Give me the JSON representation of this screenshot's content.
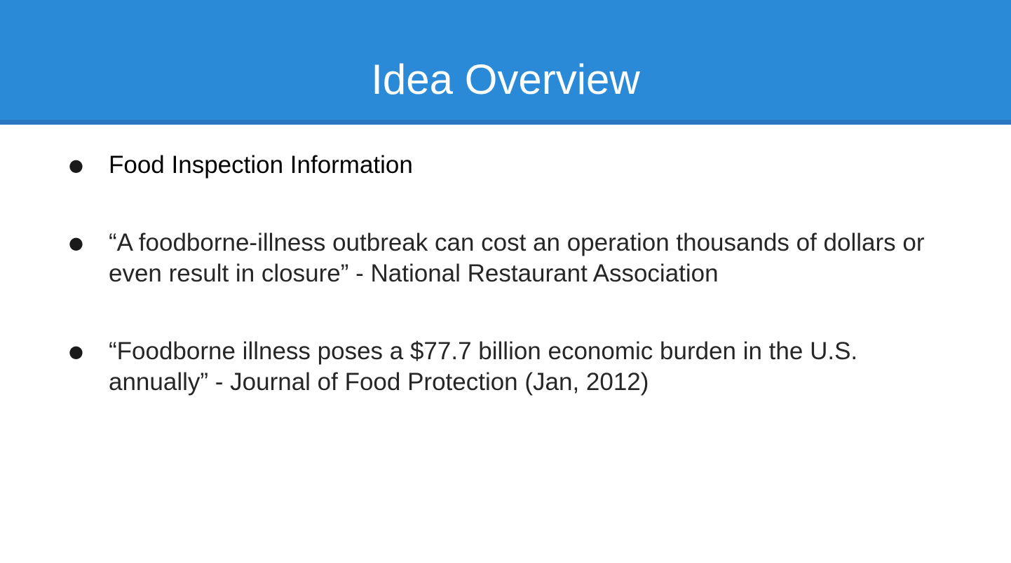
{
  "slide": {
    "title": "Idea Overview",
    "bullets": [
      {
        "text": "Food Inspection Information"
      },
      {
        "text": "“A foodborne-illness outbreak can cost an operation thousands of dollars or even result in closure” - National Restaurant Association"
      },
      {
        "text": "“Foodborne illness poses a $77.7 billion economic burden in the U.S. annually” - Journal of Food Protection (Jan, 2012)"
      }
    ],
    "bullet_glyph": "●"
  },
  "colors": {
    "header_band": "#2b8ad8",
    "header_rule": "#2a78c2",
    "title_text": "#ffffff",
    "body_text": "#262626"
  }
}
